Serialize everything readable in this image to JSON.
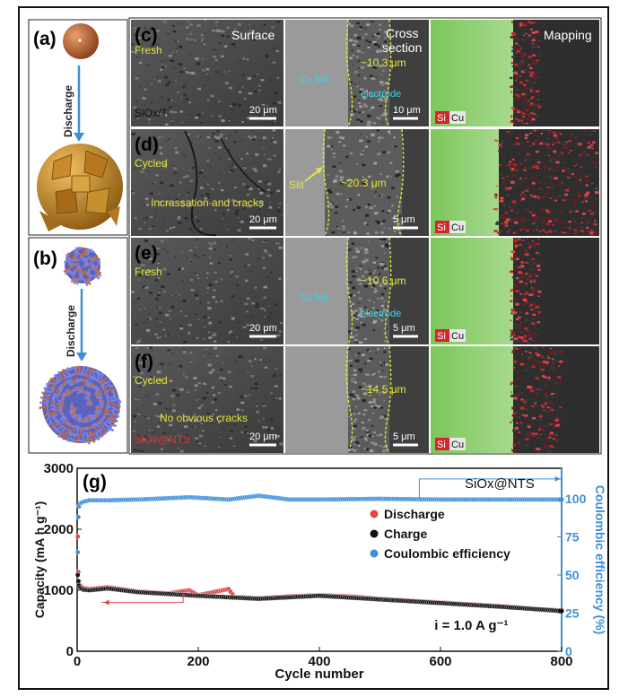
{
  "panel_labels": {
    "a": "(a)",
    "b": "(b)",
    "c": "(c)",
    "d": "(d)",
    "e": "(e)",
    "f": "(f)",
    "g": "(g)"
  },
  "schematic": {
    "discharge_label": "Discharge"
  },
  "headers": {
    "surface": "Surface",
    "cross_section_line1": "Cross",
    "cross_section_line2": "section",
    "mapping": "Mapping"
  },
  "rows": [
    {
      "state": "Fresh",
      "state_color": "#e6e63a",
      "note": "",
      "sample": "SiOx/T",
      "surface_scale": "20 μm",
      "cross_scale": "10 μm",
      "thickness": "~10.3 μm",
      "foil_label": "Cu foil",
      "electrode_label": "electrode",
      "slit_label": ""
    },
    {
      "state": "Cycled",
      "state_color": "#e6e63a",
      "note": "Incrassation and cracks",
      "sample": "",
      "surface_scale": "20 μm",
      "cross_scale": "5 μm",
      "thickness": "~20.3 μm",
      "foil_label": "",
      "electrode_label": "",
      "slit_label": "Slit"
    },
    {
      "state": "Fresh",
      "state_color": "#e6e63a",
      "note": "",
      "sample": "",
      "surface_scale": "20 μm",
      "cross_scale": "5 μm",
      "thickness": "~10.6 μm",
      "foil_label": "Cu foil",
      "electrode_label": "electrode",
      "slit_label": ""
    },
    {
      "state": "Cycled",
      "state_color": "#e6e63a",
      "note": "No obvious cracks",
      "sample": "SiOx@NTS",
      "surface_scale": "20 μm",
      "cross_scale": "5 μm",
      "thickness": "~14.5 μm",
      "foil_label": "",
      "electrode_label": "",
      "slit_label": ""
    }
  ],
  "mapping_legend": {
    "si": "Si",
    "cu": "Cu"
  },
  "colors": {
    "discharge": "#e0464a",
    "charge": "#111111",
    "coulombic": "#3f8fd8",
    "yellow": "#e6e63a",
    "cyan": "#3ad6e8"
  },
  "chart_data": {
    "type": "scatter",
    "title": "",
    "annotation_sample": "SiOx@NTS",
    "annotation_current": "i = 1.0 A g⁻¹",
    "xlabel": "Cycle number",
    "ylabel_left": "Capacity (mA h g⁻¹)",
    "ylabel_right": "Coulombic efficiency (%)",
    "xlim": [
      0,
      800
    ],
    "ylim_left": [
      0,
      3000
    ],
    "ylim_right": [
      0,
      120
    ],
    "xticks": [
      0,
      200,
      400,
      600,
      800
    ],
    "yticks_left": [
      0,
      1000,
      2000,
      3000
    ],
    "yticks_right": [
      0,
      25,
      50,
      75,
      100
    ],
    "legend": [
      "Discharge",
      "Charge",
      "Coulombic efficiency"
    ],
    "series": [
      {
        "name": "Discharge",
        "axis": "left",
        "x": [
          1,
          2,
          3,
          5,
          10,
          20,
          50,
          80,
          100,
          150,
          185,
          200,
          250,
          260,
          300,
          350,
          400,
          450,
          500,
          550,
          600,
          650,
          700,
          750,
          800
        ],
        "values": [
          1880,
          1300,
          1150,
          1080,
          1040,
          1020,
          1050,
          1010,
          980,
          950,
          1000,
          920,
          1020,
          890,
          870,
          900,
          920,
          900,
          860,
          830,
          800,
          770,
          740,
          700,
          670
        ]
      },
      {
        "name": "Charge",
        "axis": "left",
        "x": [
          1,
          2,
          3,
          5,
          10,
          20,
          50,
          100,
          200,
          300,
          400,
          500,
          600,
          700,
          800
        ],
        "values": [
          1250,
          1150,
          1080,
          1040,
          1010,
          1000,
          1030,
          970,
          910,
          860,
          910,
          850,
          790,
          730,
          660
        ]
      },
      {
        "name": "Coulombic efficiency",
        "axis": "right",
        "x": [
          1,
          2,
          3,
          5,
          10,
          20,
          50,
          100,
          185,
          250,
          300,
          350,
          400,
          500,
          600,
          700,
          800
        ],
        "values": [
          65,
          88,
          95,
          97,
          98,
          99,
          99,
          99.5,
          101,
          99.5,
          102,
          99.5,
          99.5,
          100,
          99.5,
          99.5,
          99.5
        ]
      }
    ]
  }
}
